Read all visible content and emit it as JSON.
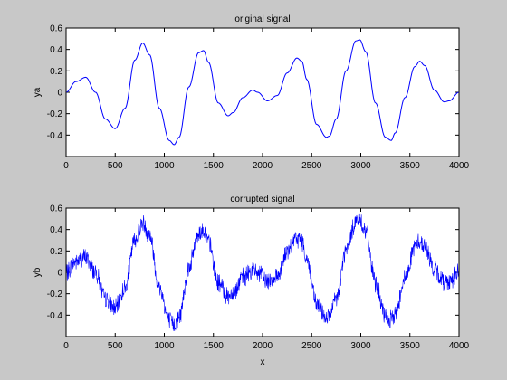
{
  "figure": {
    "background": "#c8c8c8"
  },
  "chart_data": [
    {
      "type": "line",
      "title": "original signal",
      "xlabel": "",
      "ylabel": "ya",
      "xlim": [
        0,
        4000
      ],
      "ylim": [
        -0.6,
        0.6
      ],
      "xticks": [
        0,
        500,
        1000,
        1500,
        2000,
        2500,
        3000,
        3500,
        4000
      ],
      "yticks": [
        -0.4,
        -0.2,
        0,
        0.2,
        0.4,
        0.6
      ],
      "grid": false,
      "line_color": "#0000ff",
      "series": [
        {
          "x": [
            0,
            100,
            200,
            300,
            400,
            500,
            600,
            700,
            780,
            850,
            950,
            1050,
            1100,
            1150,
            1250,
            1350,
            1400,
            1450,
            1550,
            1650,
            1700,
            1800,
            1900,
            1950,
            2050,
            2150,
            2250,
            2350,
            2400,
            2450,
            2550,
            2650,
            2680,
            2750,
            2850,
            2950,
            2990,
            3050,
            3150,
            3250,
            3310,
            3350,
            3450,
            3550,
            3600,
            3650,
            3750,
            3850,
            3900,
            4000
          ],
          "y": [
            0.0,
            0.1,
            0.14,
            0.0,
            -0.25,
            -0.34,
            -0.15,
            0.3,
            0.46,
            0.35,
            -0.15,
            -0.45,
            -0.49,
            -0.42,
            0.05,
            0.37,
            0.39,
            0.28,
            -0.1,
            -0.22,
            -0.19,
            -0.05,
            0.02,
            0.0,
            -0.08,
            -0.03,
            0.18,
            0.32,
            0.29,
            0.12,
            -0.3,
            -0.42,
            -0.41,
            -0.25,
            0.2,
            0.48,
            0.49,
            0.38,
            -0.1,
            -0.42,
            -0.45,
            -0.38,
            -0.05,
            0.24,
            0.29,
            0.25,
            0.02,
            -0.09,
            -0.08,
            0.0
          ]
        }
      ]
    },
    {
      "type": "line",
      "title": "corrupted signal",
      "xlabel": "x",
      "ylabel": "yb",
      "xlim": [
        0,
        4000
      ],
      "ylim": [
        -0.6,
        0.6
      ],
      "xticks": [
        0,
        500,
        1000,
        1500,
        2000,
        2500,
        3000,
        3500,
        4000
      ],
      "yticks": [
        -0.4,
        -0.2,
        0,
        0.2,
        0.4,
        0.6
      ],
      "grid": false,
      "line_color": "#0000ff",
      "noise_amplitude": 0.1,
      "series": [
        {
          "x": [
            0,
            100,
            200,
            300,
            400,
            500,
            600,
            700,
            780,
            850,
            950,
            1050,
            1100,
            1150,
            1250,
            1350,
            1400,
            1450,
            1550,
            1650,
            1700,
            1800,
            1900,
            1950,
            2050,
            2150,
            2250,
            2350,
            2400,
            2450,
            2550,
            2650,
            2680,
            2750,
            2850,
            2950,
            2990,
            3050,
            3150,
            3250,
            3310,
            3350,
            3450,
            3550,
            3600,
            3650,
            3750,
            3850,
            3900,
            4000
          ],
          "y": [
            0.0,
            0.1,
            0.14,
            0.0,
            -0.25,
            -0.34,
            -0.15,
            0.3,
            0.46,
            0.35,
            -0.15,
            -0.45,
            -0.49,
            -0.42,
            0.05,
            0.37,
            0.39,
            0.28,
            -0.1,
            -0.22,
            -0.19,
            -0.05,
            0.02,
            0.0,
            -0.08,
            -0.03,
            0.18,
            0.32,
            0.29,
            0.12,
            -0.3,
            -0.42,
            -0.41,
            -0.25,
            0.2,
            0.48,
            0.49,
            0.38,
            -0.1,
            -0.42,
            -0.45,
            -0.38,
            -0.05,
            0.24,
            0.29,
            0.25,
            0.02,
            -0.09,
            -0.08,
            0.0
          ]
        }
      ]
    }
  ]
}
